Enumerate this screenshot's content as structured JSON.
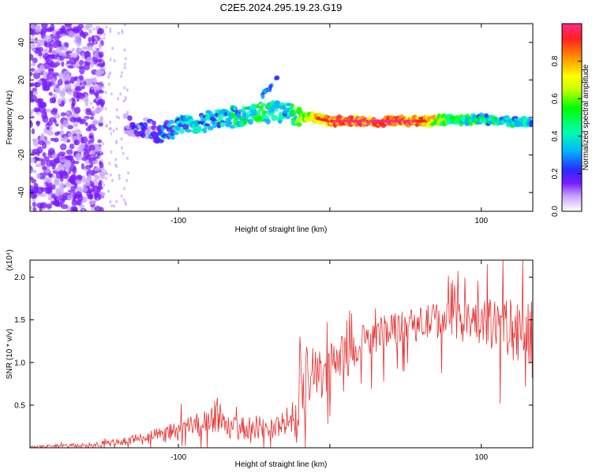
{
  "title": "C2E5.2024.295.19.23.G19",
  "chart_data": [
    {
      "type": "heatmap",
      "xlabel": "Height of straight line (km)",
      "ylabel": "Frequency (Hz)",
      "xlim": [
        -198,
        134
      ],
      "ylim": [
        -50,
        50
      ],
      "xticks": [
        -100,
        0,
        100
      ],
      "xtick_labels": [
        "-100",
        "",
        "100"
      ],
      "yticks": [
        -40,
        -20,
        0,
        20,
        40
      ],
      "ytick_labels": [
        "-40",
        "-20",
        "0",
        "20",
        "40"
      ],
      "colorbar": {
        "label": "Normalized spectral amplitude",
        "range": [
          0,
          1
        ],
        "ticks": [
          0.0,
          0.2,
          0.4,
          0.6,
          0.8
        ],
        "tick_labels": [
          "0.0",
          "0.2",
          "0.4",
          "0.6",
          "0.8"
        ],
        "colors": [
          "#ffffff",
          "#c7a6ff",
          "#7a1bff",
          "#2a2aff",
          "#00b4ff",
          "#00ffb0",
          "#00ff00",
          "#c8ff00",
          "#ffff00",
          "#ff9000",
          "#ff2020",
          "#ff2a8a"
        ]
      },
      "ridge": {
        "x": [
          -135,
          -125,
          -115,
          -105,
          -95,
          -85,
          -75,
          -65,
          -55,
          -45,
          -35,
          -28,
          -20,
          -10,
          0,
          20,
          40,
          60,
          80,
          100,
          120,
          134
        ],
        "freq": [
          -4,
          -5,
          -8,
          -7,
          -3,
          -2,
          -1,
          0,
          1,
          2,
          3,
          2,
          1,
          0,
          -2,
          -2,
          -2,
          -2,
          -1,
          -1,
          -2,
          -3
        ],
        "amplitude": [
          0.25,
          0.3,
          0.35,
          0.45,
          0.5,
          0.5,
          0.5,
          0.55,
          0.55,
          0.6,
          0.55,
          0.5,
          0.7,
          0.85,
          0.95,
          1.0,
          1.0,
          0.95,
          0.6,
          0.55,
          0.55,
          0.45
        ]
      },
      "spur": {
        "x": [
          -46,
          -42,
          -38,
          -34
        ],
        "freq": [
          10,
          14,
          18,
          22
        ],
        "amplitude": 0.25
      }
    },
    {
      "type": "line",
      "xlabel": "Height of straight line (km)",
      "ylabel": "SNR (10 * v/v)",
      "y_multiplier": "(x10⁴)",
      "xlim": [
        -198,
        134
      ],
      "ylim": [
        0,
        2.2
      ],
      "xticks": [
        -100,
        0,
        100
      ],
      "xtick_labels": [
        "-100",
        "",
        "100"
      ],
      "yticks": [
        0.5,
        1.0,
        1.5,
        2.0
      ],
      "ytick_labels": [
        "0.5",
        "1.0",
        "1.5",
        "2.0"
      ],
      "color": "#e83030",
      "x": [
        -198,
        -180,
        -160,
        -140,
        -120,
        -110,
        -100,
        -90,
        -80,
        -75,
        -70,
        -60,
        -50,
        -40,
        -30,
        -24,
        -22,
        -20,
        -15,
        -12,
        -10,
        -5,
        0,
        10,
        20,
        30,
        40,
        50,
        60,
        70,
        80,
        90,
        100,
        110,
        120,
        125,
        130,
        134
      ],
      "y": [
        0.01,
        0.02,
        0.03,
        0.06,
        0.12,
        0.15,
        0.2,
        0.25,
        0.3,
        0.42,
        0.25,
        0.22,
        0.25,
        0.22,
        0.28,
        0.35,
        0.1,
        0.6,
        0.75,
        1.1,
        0.9,
        0.8,
        1.0,
        1.1,
        1.2,
        1.3,
        1.4,
        1.45,
        1.45,
        1.5,
        1.5,
        1.48,
        1.45,
        1.45,
        1.4,
        1.3,
        1.2,
        1.25
      ],
      "spread": [
        0.01,
        0.02,
        0.03,
        0.05,
        0.08,
        0.1,
        0.12,
        0.14,
        0.16,
        0.25,
        0.14,
        0.13,
        0.14,
        0.13,
        0.15,
        0.25,
        0.1,
        0.35,
        0.45,
        0.5,
        0.3,
        0.3,
        0.25,
        0.22,
        0.22,
        0.2,
        0.2,
        0.2,
        0.2,
        0.22,
        0.22,
        0.25,
        0.28,
        0.3,
        0.35,
        0.45,
        0.55,
        0.5
      ]
    }
  ]
}
